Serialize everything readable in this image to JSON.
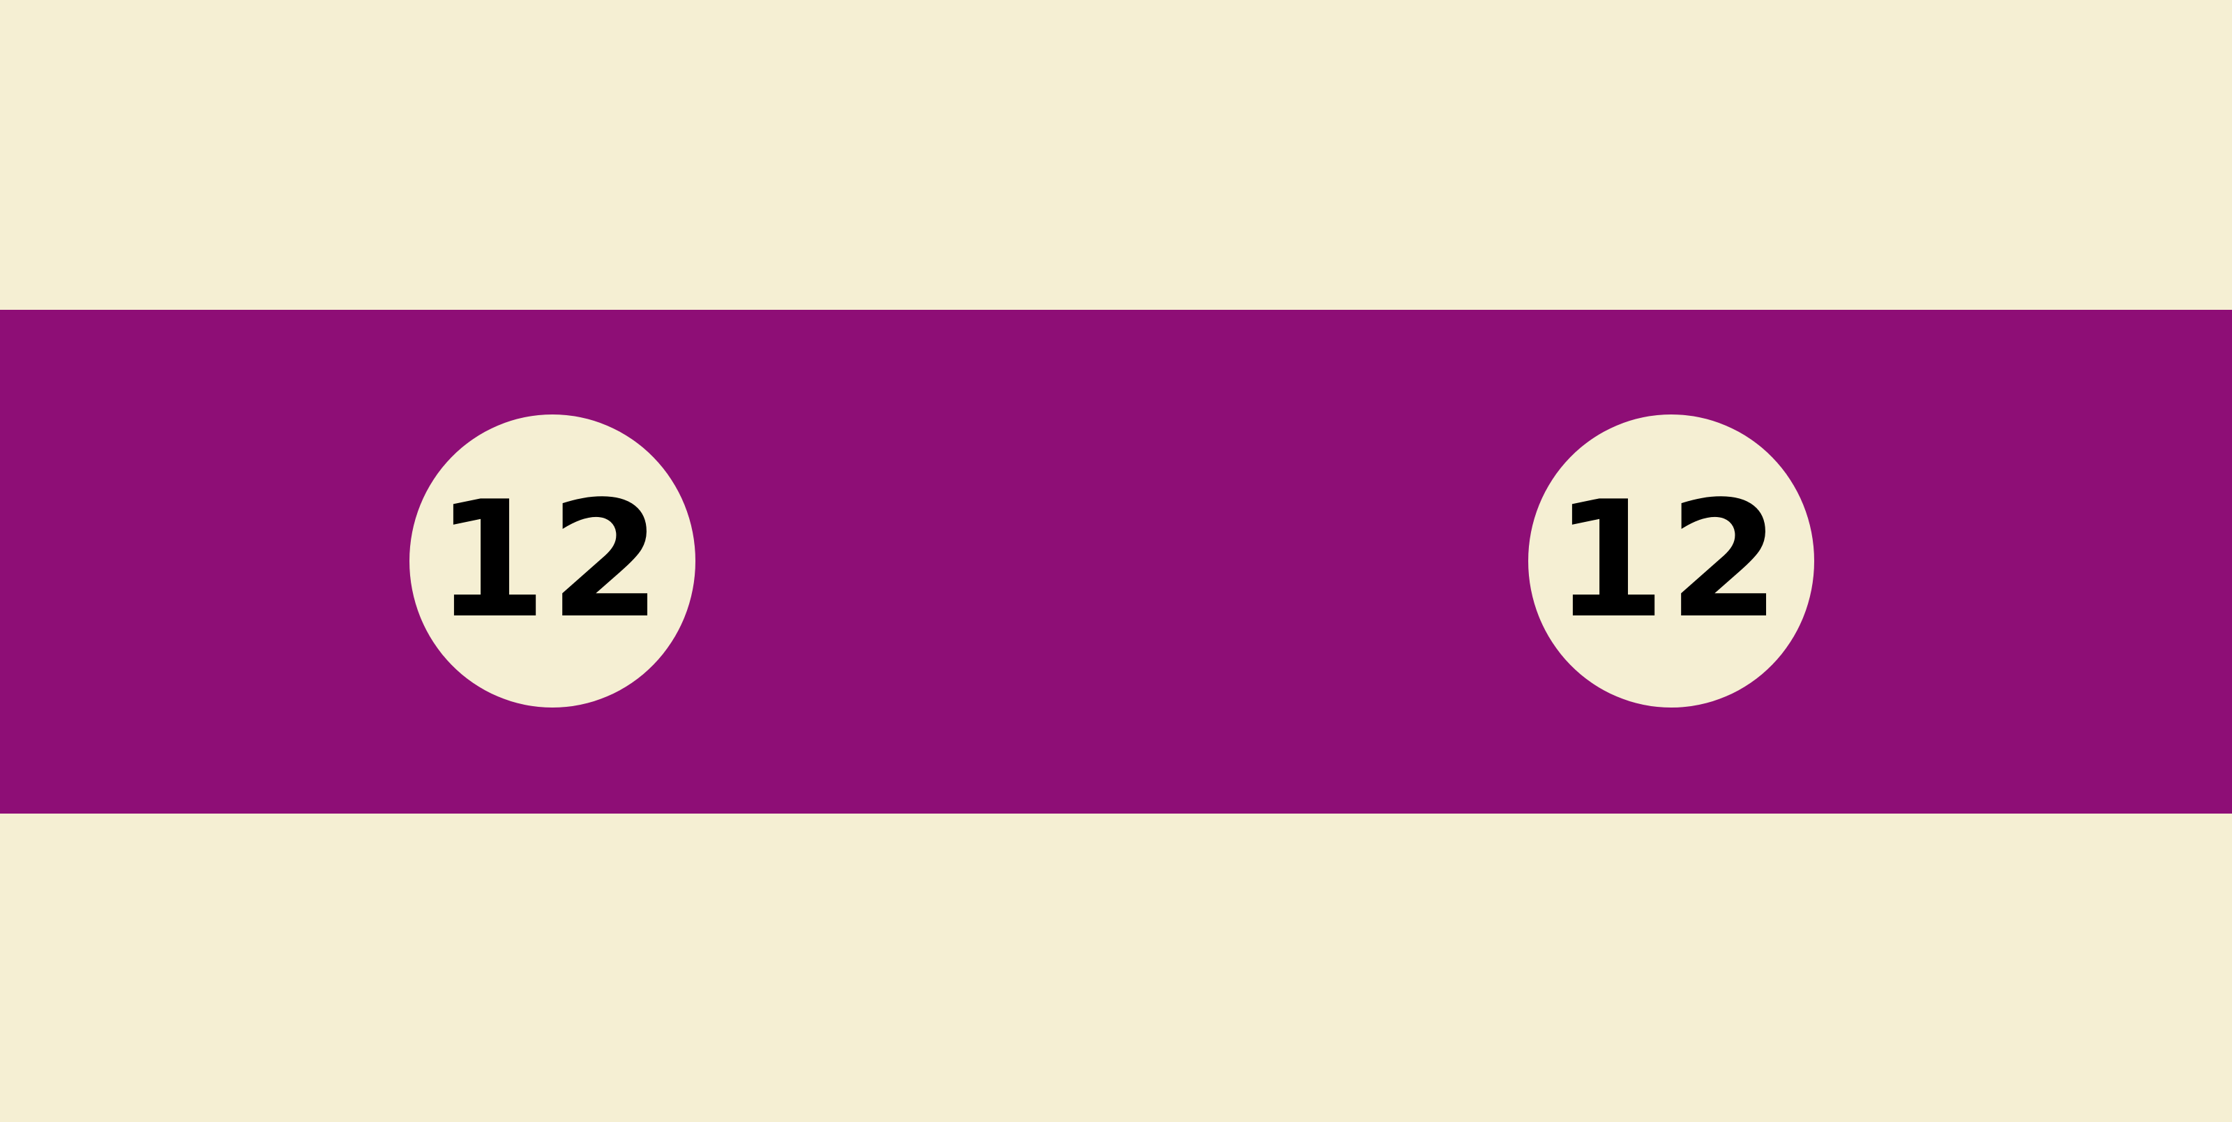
{
  "colors": {
    "background": "#f5efd3",
    "band": "#8e0e76",
    "ball": "#f5efd3",
    "number": "#000000"
  },
  "balls": [
    {
      "number": "12"
    },
    {
      "number": "12"
    }
  ]
}
